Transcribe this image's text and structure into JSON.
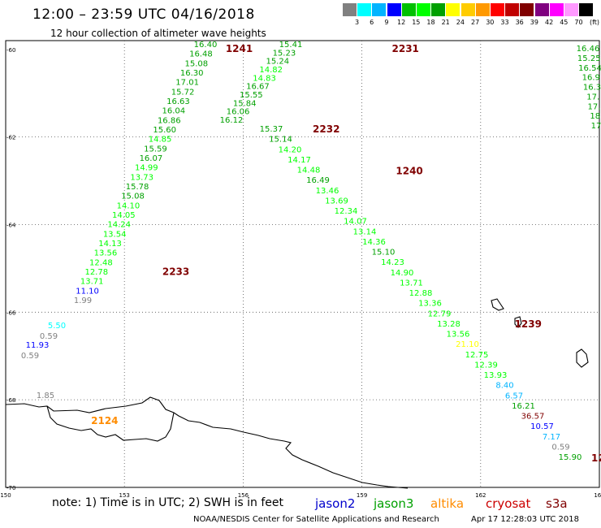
{
  "title": "12:00 – 23:59 UTC 04/16/2018",
  "subtitle": "12 hour collection of altimeter wave heights",
  "legend": {
    "colors": [
      "#808080",
      "#00ffff",
      "#00b4ff",
      "#0000ff",
      "#00c000",
      "#00ff00",
      "#00a000",
      "#ffff00",
      "#ffcc00",
      "#ff9900",
      "#ff0000",
      "#c00000",
      "#800000",
      "#800080",
      "#ff00ff",
      "#ff99ff",
      "#000000"
    ],
    "labels": [
      "3",
      "6",
      "9",
      "12",
      "15",
      "18",
      "21",
      "24",
      "27",
      "30",
      "33",
      "36",
      "39",
      "42",
      "45",
      "70"
    ],
    "unit": "(ft)"
  },
  "axis": {
    "lat_labels": [
      "-60",
      "-62",
      "-64",
      "-66",
      "-68",
      "-70"
    ],
    "lon_labels": [
      "150",
      "153",
      "156",
      "159",
      "162",
      "165"
    ]
  },
  "footer": {
    "note": "note: 1) Time is in UTC; 2) SWH is in feet",
    "missions": [
      {
        "name": "jason2",
        "color": "#0000cc"
      },
      {
        "name": "jason3",
        "color": "#00a000"
      },
      {
        "name": "altika",
        "color": "#ff8c00"
      },
      {
        "name": "cryosat",
        "color": "#cc0000"
      },
      {
        "name": "s3a",
        "color": "#800000"
      }
    ],
    "credit": "NOAA/NESDIS Center for Satellite Applications and Research",
    "timestamp": "Apr 17 12:28:03 UTC 2018"
  },
  "pass_labels": [
    {
      "text": "1241",
      "color": "#800000",
      "lon": 155.9,
      "lat": -60.06
    },
    {
      "text": "2231",
      "color": "#800000",
      "lon": 160.1,
      "lat": -60.06
    },
    {
      "text": "2232",
      "color": "#800000",
      "lon": 158.1,
      "lat": -61.9
    },
    {
      "text": "1240",
      "color": "#800000",
      "lon": 160.2,
      "lat": -62.85
    },
    {
      "text": "2233",
      "color": "#800000",
      "lon": 154.3,
      "lat": -65.15
    },
    {
      "text": "1239",
      "color": "#800000",
      "lon": 163.2,
      "lat": -66.35
    },
    {
      "text": "2124",
      "color": "#ff8c00",
      "lon": 152.5,
      "lat": -68.55
    }
  ],
  "tracks": [
    {
      "name": "track-2233-2231",
      "points": [
        {
          "v": "16.40",
          "c": "#00a000"
        },
        {
          "v": "16.48",
          "c": "#00a000"
        },
        {
          "v": "15.08",
          "c": "#00a000"
        },
        {
          "v": "16.30",
          "c": "#00a000"
        },
        {
          "v": "17.01",
          "c": "#00a000"
        },
        {
          "v": "15.72",
          "c": "#00a000"
        },
        {
          "v": "16.63",
          "c": "#00a000"
        },
        {
          "v": "16.04",
          "c": "#00a000"
        },
        {
          "v": "16.86",
          "c": "#00a000"
        },
        {
          "v": "15.60",
          "c": "#00a000"
        },
        {
          "v": "14.85",
          "c": "#00ff00"
        },
        {
          "v": "15.59",
          "c": "#00a000"
        },
        {
          "v": "16.07",
          "c": "#00a000"
        },
        {
          "v": "14.99",
          "c": "#00ff00"
        },
        {
          "v": "13.73",
          "c": "#00ff00"
        },
        {
          "v": "15.78",
          "c": "#00a000"
        },
        {
          "v": "15.08",
          "c": "#00a000"
        },
        {
          "v": "14.10",
          "c": "#00ff00"
        },
        {
          "v": "14.05",
          "c": "#00ff00"
        },
        {
          "v": "14.24",
          "c": "#00ff00"
        },
        {
          "v": "13.54",
          "c": "#00ff00"
        },
        {
          "v": "14.13",
          "c": "#00ff00"
        },
        {
          "v": "13.56",
          "c": "#00ff00"
        },
        {
          "v": "12.48",
          "c": "#00ff00"
        },
        {
          "v": "12.78",
          "c": "#00ff00"
        },
        {
          "v": "13.71",
          "c": "#00ff00"
        },
        {
          "v": "11.10",
          "c": "#0000ff"
        },
        {
          "v": "1.99",
          "c": "#808080"
        }
      ]
    },
    {
      "name": "track-2231-2232",
      "points": [
        {
          "v": "15.41",
          "c": "#00a000"
        },
        {
          "v": "15.23",
          "c": "#00a000"
        },
        {
          "v": "15.24",
          "c": "#00a000"
        },
        {
          "v": "14.82",
          "c": "#00ff00"
        },
        {
          "v": "14.83",
          "c": "#00ff00"
        },
        {
          "v": "16.67",
          "c": "#00a000"
        },
        {
          "v": "15.55",
          "c": "#00a000"
        },
        {
          "v": "15.84",
          "c": "#00a000"
        },
        {
          "v": "16.06",
          "c": "#00a000"
        },
        {
          "v": "16.12",
          "c": "#00a000"
        }
      ]
    },
    {
      "name": "track-1240-1239",
      "points": [
        {
          "v": "15.37",
          "c": "#00a000"
        },
        {
          "v": "15.14",
          "c": "#00a000"
        },
        {
          "v": "14.20",
          "c": "#00ff00"
        },
        {
          "v": "14.17",
          "c": "#00ff00"
        },
        {
          "v": "14.48",
          "c": "#00ff00"
        },
        {
          "v": "16.49",
          "c": "#00a000"
        },
        {
          "v": "13.46",
          "c": "#00ff00"
        },
        {
          "v": "13.69",
          "c": "#00ff00"
        },
        {
          "v": "12.34",
          "c": "#00ff00"
        },
        {
          "v": "14.07",
          "c": "#00ff00"
        },
        {
          "v": "13.14",
          "c": "#00ff00"
        },
        {
          "v": "14.36",
          "c": "#00ff00"
        },
        {
          "v": "15.10",
          "c": "#00a000"
        },
        {
          "v": "14.23",
          "c": "#00ff00"
        },
        {
          "v": "14.90",
          "c": "#00ff00"
        },
        {
          "v": "13.71",
          "c": "#00ff00"
        },
        {
          "v": "12.88",
          "c": "#00ff00"
        },
        {
          "v": "13.36",
          "c": "#00ff00"
        },
        {
          "v": "12.79",
          "c": "#00ff00"
        },
        {
          "v": "13.28",
          "c": "#00ff00"
        },
        {
          "v": "13.56",
          "c": "#00ff00"
        },
        {
          "v": "21.10",
          "c": "#ffff00"
        },
        {
          "v": "12.75",
          "c": "#00ff00"
        },
        {
          "v": "12.39",
          "c": "#00ff00"
        },
        {
          "v": "13.93",
          "c": "#00ff00"
        },
        {
          "v": "8.40",
          "c": "#00b4ff"
        },
        {
          "v": "6.57",
          "c": "#00b4ff"
        },
        {
          "v": "16.21",
          "c": "#00a000"
        },
        {
          "v": "36.57",
          "c": "#800000"
        },
        {
          "v": "10.57",
          "c": "#0000ff"
        },
        {
          "v": "7.17",
          "c": "#00b4ff"
        },
        {
          "v": "0.59",
          "c": "#808080"
        },
        {
          "v": "15.90",
          "c": "#00a000"
        }
      ]
    },
    {
      "name": "track-west",
      "points": [
        {
          "v": "5.50",
          "c": "#00ffff"
        },
        {
          "v": "0.59",
          "c": "#808080"
        },
        {
          "v": "11.93",
          "c": "#0000ff"
        },
        {
          "v": "0.59",
          "c": "#808080"
        },
        {
          "v": "1.85",
          "c": "#808080"
        }
      ]
    },
    {
      "name": "track-east",
      "points": [
        {
          "v": "16.46",
          "c": "#00a000"
        },
        {
          "v": "15.25",
          "c": "#00a000"
        },
        {
          "v": "16.54",
          "c": "#00a000"
        },
        {
          "v": "16.9",
          "c": "#00a000"
        },
        {
          "v": "16.3",
          "c": "#00a000"
        },
        {
          "v": "17.",
          "c": "#00a000"
        },
        {
          "v": "17.",
          "c": "#00a000"
        },
        {
          "v": "18",
          "c": "#00a000"
        },
        {
          "v": "17",
          "c": "#00a000"
        }
      ]
    }
  ],
  "edge_label": {
    "text": "12",
    "color": "#800000"
  }
}
